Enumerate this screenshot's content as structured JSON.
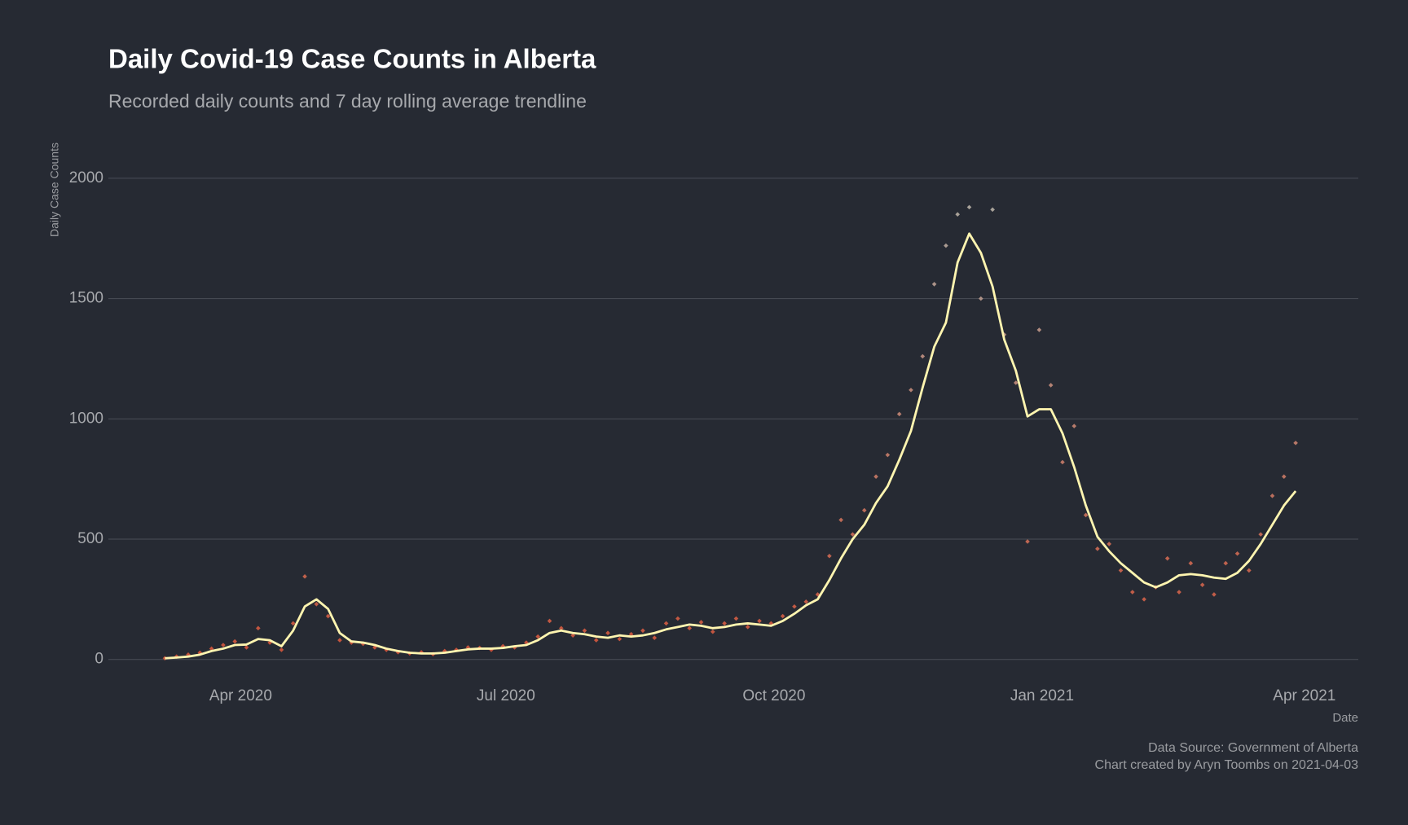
{
  "chart_data": {
    "type": "scatter",
    "title": "Daily Covid-19 Case Counts in Alberta",
    "subtitle": "Recorded daily counts and 7 day rolling average trendline",
    "y_label": "Daily Case Counts",
    "x_label": "Date",
    "captions": [
      "Data Source: Government of Alberta",
      "Chart created by Aryn Toombs on 2021-04-03"
    ],
    "xlim": [
      45.6,
      474.5
    ],
    "xticks": [
      {
        "value": 91,
        "label": "Apr 2020"
      },
      {
        "value": 182,
        "label": "Jul 2020"
      },
      {
        "value": 274,
        "label": "Oct 2020"
      },
      {
        "value": 366,
        "label": "Jan 2021"
      },
      {
        "value": 456,
        "label": "Apr 2021"
      }
    ],
    "ylim": [
      -94,
      2062
    ],
    "yticks": [
      0,
      500,
      1000,
      1500,
      2000
    ],
    "grid": true,
    "x": [
      65,
      69,
      73,
      77,
      81,
      85,
      89,
      93,
      97,
      101,
      105,
      109,
      113,
      117,
      121,
      125,
      129,
      133,
      137,
      141,
      145,
      149,
      153,
      157,
      161,
      165,
      169,
      173,
      177,
      181,
      185,
      189,
      193,
      197,
      201,
      205,
      209,
      213,
      217,
      221,
      225,
      229,
      233,
      237,
      241,
      245,
      249,
      253,
      257,
      261,
      265,
      269,
      273,
      277,
      281,
      285,
      289,
      293,
      297,
      301,
      305,
      309,
      313,
      317,
      321,
      325,
      329,
      333,
      337,
      341,
      345,
      349,
      353,
      357,
      361,
      365,
      369,
      373,
      377,
      381,
      385,
      389,
      393,
      397,
      401,
      405,
      409,
      413,
      417,
      421,
      425,
      429,
      433,
      437,
      441,
      445,
      449,
      453
    ],
    "series": [
      {
        "kind": "scatter",
        "colors": [
          "#c4513a",
          "#a8a29a"
        ],
        "values": [
          5,
          12,
          20,
          28,
          45,
          60,
          75,
          50,
          130,
          70,
          40,
          150,
          345,
          230,
          180,
          80,
          70,
          65,
          50,
          40,
          30,
          25,
          30,
          22,
          35,
          40,
          50,
          48,
          40,
          55,
          50,
          70,
          95,
          160,
          130,
          100,
          120,
          80,
          110,
          85,
          105,
          120,
          90,
          150,
          170,
          130,
          155,
          115,
          150,
          170,
          135,
          160,
          150,
          180,
          220,
          240,
          270,
          430,
          580,
          520,
          620,
          760,
          850,
          1020,
          1120,
          1260,
          1560,
          1720,
          1850,
          1880,
          1500,
          1870,
          1350,
          1150,
          490,
          1370,
          1140,
          820,
          970,
          600,
          460,
          480,
          370,
          280,
          250,
          300,
          420,
          280,
          400,
          310,
          270,
          400,
          440,
          370,
          520,
          680,
          760,
          900
        ]
      },
      {
        "kind": "line",
        "color": "#fff5b0",
        "values": [
          5,
          8,
          12,
          20,
          35,
          45,
          60,
          62,
          85,
          80,
          55,
          120,
          220,
          250,
          210,
          110,
          75,
          70,
          60,
          45,
          35,
          28,
          25,
          25,
          28,
          35,
          42,
          45,
          45,
          48,
          55,
          60,
          80,
          110,
          120,
          110,
          105,
          95,
          90,
          100,
          95,
          100,
          110,
          125,
          135,
          145,
          140,
          130,
          135,
          145,
          150,
          145,
          140,
          160,
          190,
          225,
          250,
          330,
          420,
          500,
          560,
          650,
          720,
          830,
          950,
          1130,
          1300,
          1400,
          1650,
          1770,
          1690,
          1550,
          1330,
          1200,
          1010,
          1040,
          1040,
          940,
          800,
          640,
          510,
          450,
          400,
          360,
          320,
          300,
          320,
          350,
          355,
          350,
          340,
          335,
          360,
          410,
          480,
          560,
          640,
          700
        ]
      }
    ]
  }
}
